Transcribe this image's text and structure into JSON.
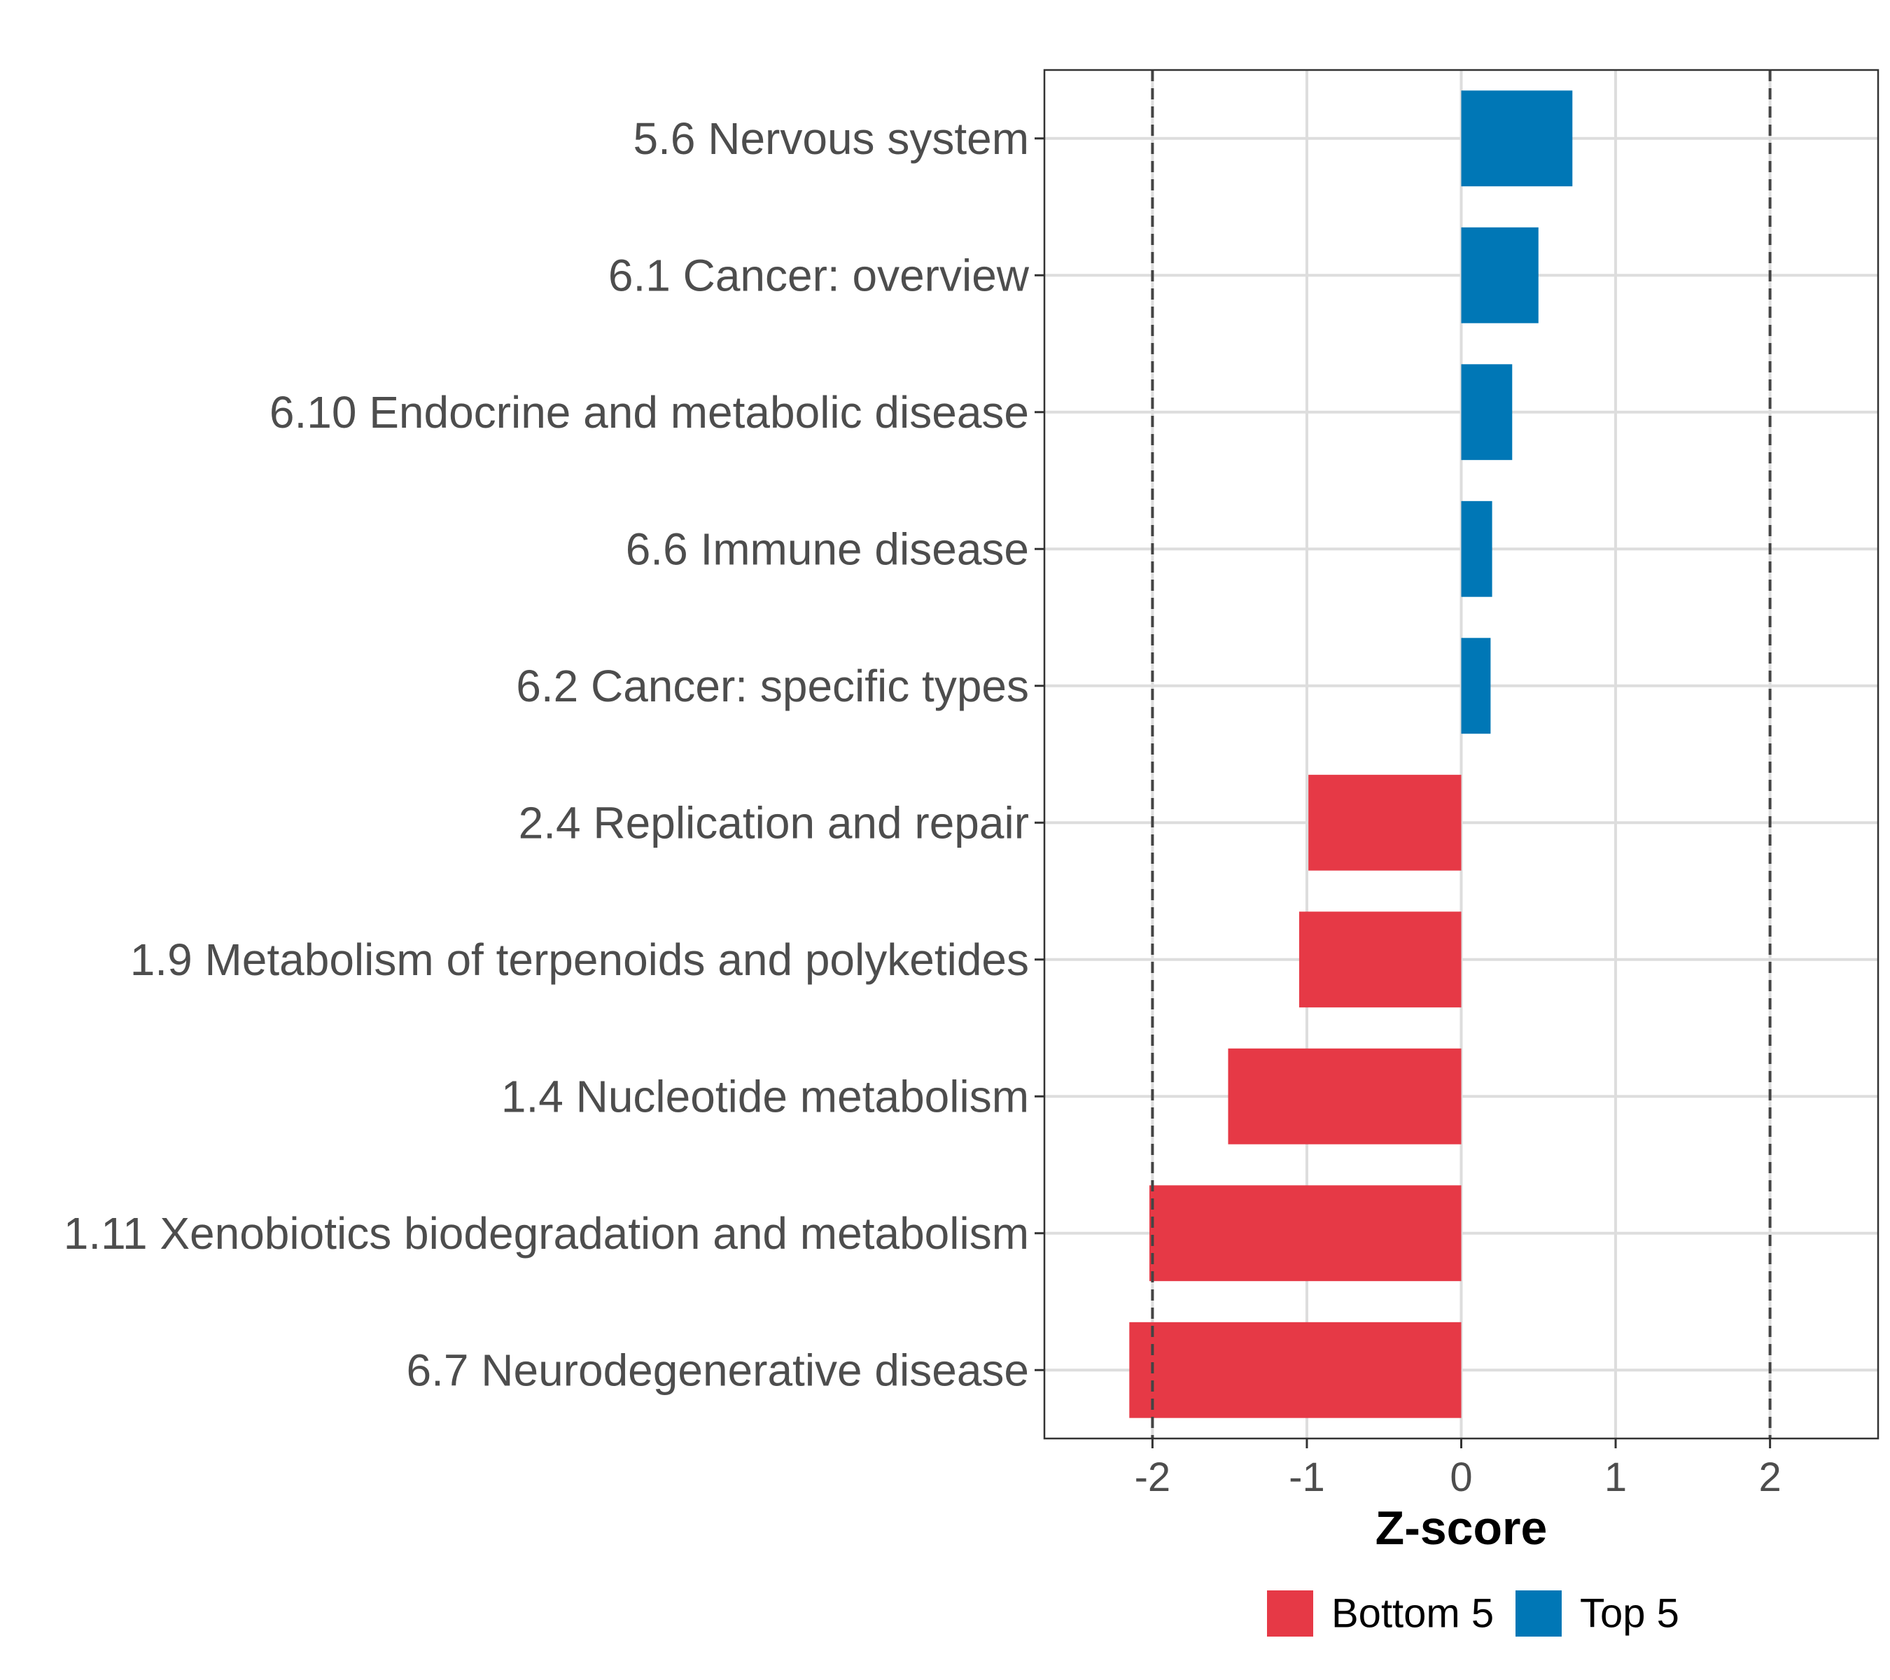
{
  "chart_data": {
    "type": "bar",
    "orientation": "horizontal",
    "xlabel": "Z-score",
    "ylabel": "",
    "xlim": [
      -2.7,
      2.7
    ],
    "xticks": [
      -2,
      -1,
      0,
      1,
      2
    ],
    "xtick_labels": [
      "-2",
      "-1",
      "0",
      "1",
      "2"
    ],
    "reference_lines": [
      -2,
      2
    ],
    "grid": true,
    "legend_position": "bottom",
    "categories": [
      "5.6 Nervous system",
      "6.1 Cancer: overview",
      "6.10 Endocrine and metabolic disease",
      "6.6 Immune disease",
      "6.2 Cancer: specific types",
      "2.4 Replication and repair",
      "1.9 Metabolism of terpenoids and polyketides",
      "1.4 Nucleotide metabolism",
      "1.11 Xenobiotics biodegradation and metabolism",
      "6.7 Neurodegenerative disease"
    ],
    "values": [
      0.72,
      0.5,
      0.33,
      0.2,
      0.19,
      -0.99,
      -1.05,
      -1.51,
      -2.02,
      -2.15
    ],
    "groups": [
      "Top 5",
      "Top 5",
      "Top 5",
      "Top 5",
      "Top 5",
      "Bottom 5",
      "Bottom 5",
      "Bottom 5",
      "Bottom 5",
      "Bottom 5"
    ],
    "legend": [
      {
        "name": "Bottom 5",
        "color": "#E63946"
      },
      {
        "name": "Top 5",
        "color": "#0077B6"
      }
    ]
  }
}
